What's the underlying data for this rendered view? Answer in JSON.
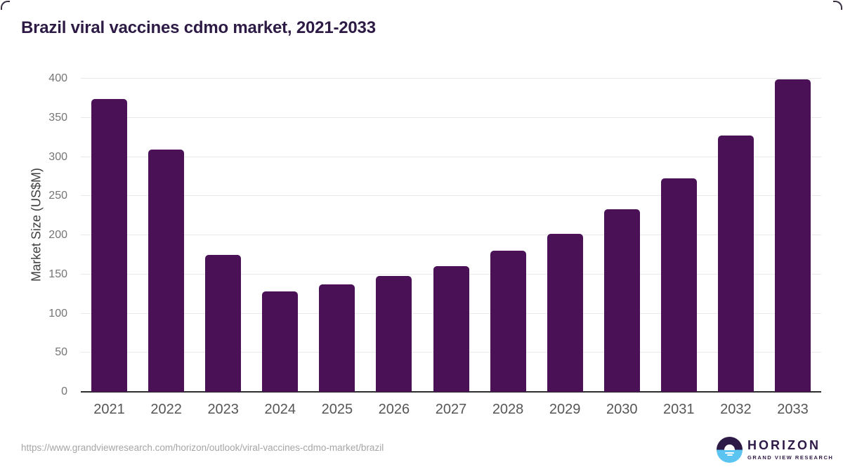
{
  "chart_data": {
    "type": "bar",
    "title": "Brazil viral vaccines cdmo market, 2021-2033",
    "categories": [
      "2021",
      "2022",
      "2023",
      "2024",
      "2025",
      "2026",
      "2027",
      "2028",
      "2029",
      "2030",
      "2031",
      "2032",
      "2033"
    ],
    "values": [
      374,
      309,
      175,
      128,
      137,
      148,
      161,
      180,
      202,
      233,
      273,
      327,
      399
    ],
    "xlabel": "",
    "ylabel": "Market Size (US$M)",
    "ylim": [
      0,
      400
    ],
    "yticks": [
      0,
      50,
      100,
      150,
      200,
      250,
      300,
      350,
      400
    ],
    "grid": true,
    "legend": false,
    "colors": {
      "bar": "#4A1157",
      "title": "#2D1B45",
      "gridline": "#E9E9E9",
      "axis_line": "#2E2E2E",
      "ytick_text": "#757575",
      "xtick_text": "#565656"
    }
  },
  "footer": {
    "source_url": "https://www.grandviewresearch.com/horizon/outlook/viral-vaccines-cdmo-market/brazil",
    "logo": {
      "name": "HORIZON",
      "subtitle": "GRAND VIEW RESEARCH",
      "purple": "#2E1A47",
      "blue": "#5BC4F0"
    }
  }
}
